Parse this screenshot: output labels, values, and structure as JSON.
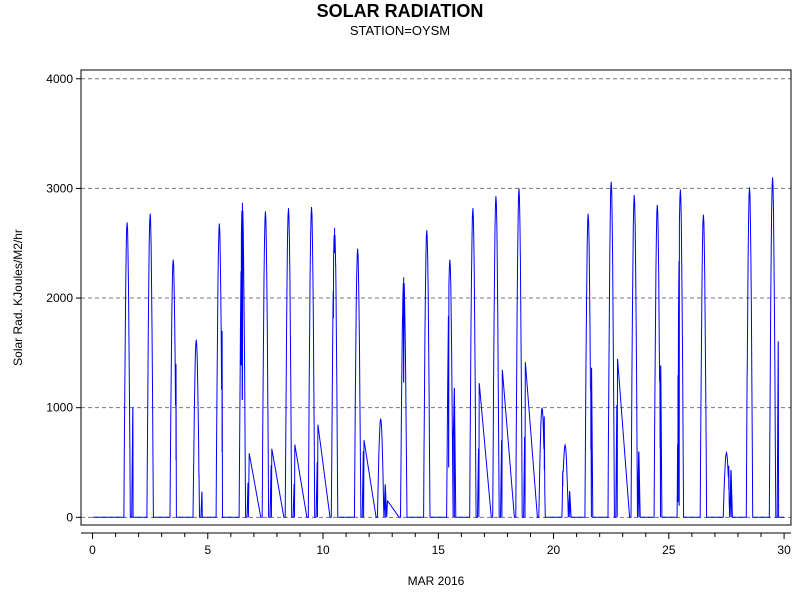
{
  "chart_data": {
    "type": "line",
    "title": "SOLAR RADIATION",
    "subtitle": "STATION=OYSM",
    "xlabel": "MAR 2016",
    "ylabel": "Solar Rad. KJoules/M2/hr",
    "xlim": [
      -0.5,
      30.3
    ],
    "ylim": [
      -70,
      4080
    ],
    "xticks": [
      0,
      5,
      10,
      15,
      20,
      25,
      30
    ],
    "yticks": [
      0,
      1000,
      2000,
      3000,
      4000
    ],
    "ygrid": true,
    "line_color": "#0000ff",
    "day_start": 0.0,
    "peaks": [
      {
        "day": 1,
        "peak": 2690,
        "extras": [
          [
            1.75,
            1000
          ]
        ]
      },
      {
        "day": 2,
        "peak": 2770,
        "extras": []
      },
      {
        "day": 3,
        "peak": 2350,
        "extras": [
          [
            3.62,
            1400
          ]
        ]
      },
      {
        "day": 4,
        "peak": 1620,
        "extras": [
          [
            4.62,
            400
          ],
          [
            4.75,
            230
          ]
        ]
      },
      {
        "day": 5,
        "peak": 2680,
        "extras": [
          [
            5.62,
            1700
          ]
        ]
      },
      {
        "day": 6,
        "peak": 2870,
        "extras": [
          [
            6.45,
            1390
          ],
          [
            6.5,
            1070
          ],
          [
            6.75,
            310
          ],
          [
            6.8,
            580
          ]
        ]
      },
      {
        "day": 7,
        "peak": 2790,
        "extras": [
          [
            7.75,
            470
          ],
          [
            7.78,
            620
          ]
        ]
      },
      {
        "day": 8,
        "peak": 2820,
        "extras": [
          [
            8.75,
            300
          ],
          [
            8.78,
            660
          ]
        ]
      },
      {
        "day": 9,
        "peak": 2830,
        "extras": [
          [
            9.75,
            500
          ],
          [
            9.78,
            840
          ]
        ]
      },
      {
        "day": 10,
        "peak": 2640,
        "extras": [
          [
            10.45,
            1820
          ],
          [
            10.5,
            2410
          ],
          [
            10.55,
            2300
          ]
        ]
      },
      {
        "day": 11,
        "peak": 2450,
        "extras": [
          [
            11.75,
            600
          ],
          [
            11.78,
            700
          ]
        ]
      },
      {
        "day": 12,
        "peak": 900,
        "extras": [
          [
            12.7,
            300
          ],
          [
            12.8,
            150
          ]
        ]
      },
      {
        "day": 13,
        "peak": 2190,
        "extras": [
          [
            13.45,
            1820
          ],
          [
            13.5,
            1230
          ]
        ]
      },
      {
        "day": 14,
        "peak": 2620,
        "extras": []
      },
      {
        "day": 15,
        "peak": 2350,
        "extras": [
          [
            15.45,
            460
          ],
          [
            15.65,
            740
          ],
          [
            15.7,
            1180
          ]
        ]
      },
      {
        "day": 16,
        "peak": 2820,
        "extras": [
          [
            16.75,
            620
          ],
          [
            16.78,
            1220
          ]
        ]
      },
      {
        "day": 17,
        "peak": 2930,
        "extras": [
          [
            17.75,
            700
          ],
          [
            17.78,
            1340
          ]
        ]
      },
      {
        "day": 18,
        "peak": 3000,
        "extras": [
          [
            18.75,
            730
          ],
          [
            18.78,
            1410
          ]
        ]
      },
      {
        "day": 19,
        "peak": 1000,
        "extras": [
          [
            19.45,
            850
          ],
          [
            19.6,
            920
          ]
        ]
      },
      {
        "day": 20,
        "peak": 660,
        "extras": [
          [
            20.4,
            420
          ],
          [
            20.7,
            240
          ]
        ]
      },
      {
        "day": 21,
        "peak": 2770,
        "extras": [
          [
            21.62,
            1140
          ],
          [
            21.65,
            1360
          ]
        ]
      },
      {
        "day": 22,
        "peak": 3060,
        "extras": [
          [
            22.75,
            1020
          ],
          [
            22.78,
            1440
          ]
        ]
      },
      {
        "day": 23,
        "peak": 2940,
        "extras": [
          [
            23.7,
            600
          ]
        ]
      },
      {
        "day": 24,
        "peak": 2850,
        "extras": [
          [
            24.62,
            1320
          ],
          [
            24.65,
            1380
          ]
        ]
      },
      {
        "day": 25,
        "peak": 2990,
        "extras": [
          [
            25.4,
            140
          ],
          [
            25.45,
            110
          ]
        ]
      },
      {
        "day": 26,
        "peak": 2760,
        "extras": []
      },
      {
        "day": 27,
        "peak": 590,
        "extras": [
          [
            27.6,
            470
          ],
          [
            27.7,
            430
          ]
        ]
      },
      {
        "day": 28,
        "peak": 3010,
        "extras": [
          [
            28.4,
            1300
          ]
        ]
      },
      {
        "day": 29,
        "peak": 3100,
        "extras": [
          [
            29.75,
            1600
          ]
        ]
      }
    ]
  }
}
